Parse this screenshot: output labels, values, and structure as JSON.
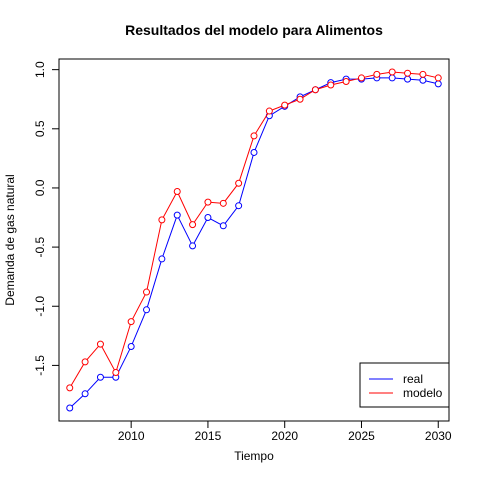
{
  "chart_data": {
    "type": "line",
    "title": "Resultados del modelo para Alimentos",
    "xlabel": "Tiempo",
    "ylabel": "Demanda de gas natural",
    "xlim": [
      2005.3,
      2030.7
    ],
    "ylim": [
      -1.97,
      1.09
    ],
    "xticks": [
      2010,
      2015,
      2020,
      2025,
      2030
    ],
    "yticks": [
      -1.5,
      -1.0,
      -0.5,
      0.0,
      0.5,
      1.0
    ],
    "ytick_labels": [
      "-1.5",
      "-1.0",
      "-0.5",
      "0.0",
      "0.5",
      "1.0"
    ],
    "grid": false,
    "legend_position": "bottom-right",
    "x": [
      2006,
      2007,
      2008,
      2009,
      2010,
      2011,
      2012,
      2013,
      2014,
      2015,
      2016,
      2017,
      2018,
      2019,
      2020,
      2021,
      2022,
      2023,
      2024,
      2025,
      2026,
      2027,
      2028,
      2029,
      2030
    ],
    "series": [
      {
        "name": "real",
        "color": "#0000ff",
        "values": [
          -1.86,
          -1.74,
          -1.6,
          -1.6,
          -1.34,
          -1.03,
          -0.6,
          -0.23,
          -0.49,
          -0.25,
          -0.32,
          -0.15,
          0.3,
          0.61,
          0.69,
          0.77,
          0.83,
          0.89,
          0.92,
          0.92,
          0.93,
          0.93,
          0.92,
          0.91,
          0.88
        ]
      },
      {
        "name": "modelo",
        "color": "#ff0000",
        "values": [
          -1.69,
          -1.47,
          -1.32,
          -1.56,
          -1.13,
          -0.88,
          -0.27,
          -0.03,
          -0.31,
          -0.12,
          -0.13,
          0.04,
          0.44,
          0.65,
          0.7,
          0.75,
          0.83,
          0.87,
          0.9,
          0.93,
          0.96,
          0.98,
          0.97,
          0.96,
          0.93
        ]
      }
    ]
  }
}
